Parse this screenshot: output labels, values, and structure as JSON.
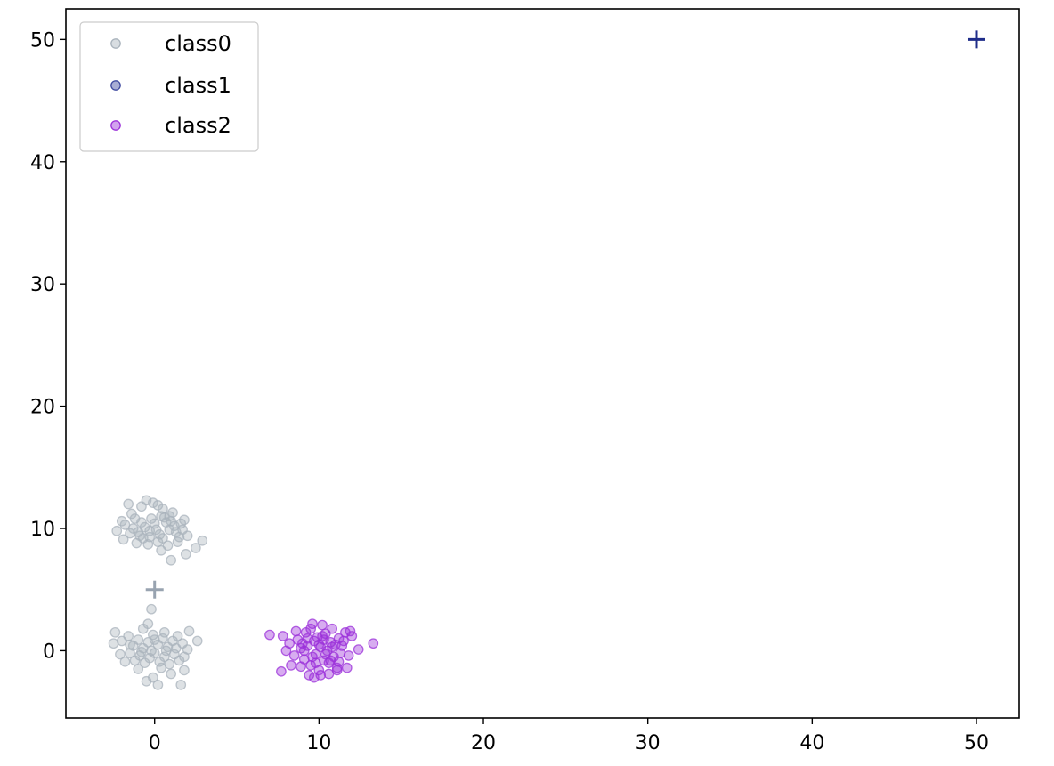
{
  "chart_data": {
    "type": "scatter",
    "xlim": [
      -5.4,
      52.6
    ],
    "ylim": [
      -5.5,
      52.5
    ],
    "x_ticks": [
      0,
      10,
      20,
      30,
      40,
      50
    ],
    "y_ticks": [
      0,
      10,
      20,
      30,
      40,
      50
    ],
    "x_tick_labels": [
      "0",
      "10",
      "20",
      "30",
      "40",
      "50"
    ],
    "y_tick_labels": [
      "0",
      "10",
      "20",
      "30",
      "40",
      "50"
    ],
    "grid": false,
    "legend_position": "upper-left",
    "series": [
      {
        "name": "class0",
        "color": "#a9b3bc",
        "marker": "circle",
        "points": [
          [
            -1.8,
            10.3
          ],
          [
            -1.5,
            9.6
          ],
          [
            -1.2,
            10.8
          ],
          [
            -0.9,
            9.4
          ],
          [
            -0.6,
            10.1
          ],
          [
            -0.3,
            9.8
          ],
          [
            0.0,
            10.4
          ],
          [
            0.3,
            9.5
          ],
          [
            0.6,
            10.9
          ],
          [
            0.9,
            9.9
          ],
          [
            1.2,
            10.2
          ],
          [
            1.5,
            9.3
          ],
          [
            -1.4,
            11.2
          ],
          [
            -0.8,
            11.8
          ],
          [
            -0.1,
            12.1
          ],
          [
            0.5,
            11.6
          ],
          [
            1.1,
            11.3
          ],
          [
            1.8,
            10.7
          ],
          [
            -2.3,
            9.8
          ],
          [
            -1.9,
            9.1
          ],
          [
            -1.1,
            8.8
          ],
          [
            -0.4,
            8.7
          ],
          [
            0.2,
            8.9
          ],
          [
            0.8,
            8.6
          ],
          [
            1.4,
            8.9
          ],
          [
            2.0,
            9.4
          ],
          [
            2.9,
            9.0
          ],
          [
            2.5,
            8.4
          ],
          [
            1.9,
            7.9
          ],
          [
            1.0,
            7.4
          ],
          [
            0.4,
            8.2
          ],
          [
            -0.7,
            9.2
          ],
          [
            -0.2,
            10.8
          ],
          [
            0.7,
            10.5
          ],
          [
            1.3,
            9.7
          ],
          [
            -1.6,
            12.0
          ],
          [
            -0.5,
            12.3
          ],
          [
            0.2,
            11.9
          ],
          [
            0.9,
            11.0
          ],
          [
            -2.0,
            10.6
          ],
          [
            -1.3,
            10.0
          ],
          [
            -0.8,
            10.5
          ],
          [
            0.1,
            9.9
          ],
          [
            0.5,
            9.2
          ],
          [
            1.0,
            10.6
          ],
          [
            1.6,
            10.4
          ],
          [
            -0.3,
            9.3
          ],
          [
            0.4,
            11.0
          ],
          [
            -1.0,
            9.7
          ],
          [
            1.7,
            9.9
          ],
          [
            -2.4,
            1.5
          ],
          [
            -2.0,
            0.8
          ],
          [
            -1.6,
            1.2
          ],
          [
            -1.3,
            0.4
          ],
          [
            -1.0,
            0.9
          ],
          [
            -0.7,
            0.2
          ],
          [
            -0.4,
            0.7
          ],
          [
            -0.1,
            1.3
          ],
          [
            0.2,
            0.5
          ],
          [
            0.5,
            1.0
          ],
          [
            0.8,
            0.3
          ],
          [
            1.1,
            0.8
          ],
          [
            1.4,
            1.2
          ],
          [
            1.7,
            0.6
          ],
          [
            2.0,
            0.1
          ],
          [
            2.6,
            0.8
          ],
          [
            2.1,
            1.6
          ],
          [
            -2.5,
            0.6
          ],
          [
            -2.1,
            -0.3
          ],
          [
            -1.8,
            -0.9
          ],
          [
            -1.5,
            -0.2
          ],
          [
            -1.2,
            -0.8
          ],
          [
            -0.9,
            -0.4
          ],
          [
            -0.6,
            -1.0
          ],
          [
            -0.3,
            -0.6
          ],
          [
            0.0,
            -0.2
          ],
          [
            0.3,
            -0.9
          ],
          [
            0.6,
            -0.5
          ],
          [
            0.9,
            -1.1
          ],
          [
            1.2,
            -0.3
          ],
          [
            1.5,
            -0.8
          ],
          [
            1.8,
            -0.5
          ],
          [
            -0.5,
            -2.5
          ],
          [
            -0.1,
            -2.2
          ],
          [
            0.2,
            -2.8
          ],
          [
            1.6,
            -2.8
          ],
          [
            -0.7,
            1.8
          ],
          [
            -0.4,
            2.2
          ],
          [
            -0.2,
            3.4
          ],
          [
            0.6,
            1.5
          ],
          [
            -1.0,
            -1.5
          ],
          [
            0.4,
            -1.4
          ],
          [
            1.0,
            -1.9
          ],
          [
            1.8,
            -1.6
          ],
          [
            -0.2,
            0.0
          ],
          [
            0.7,
            0.0
          ],
          [
            -1.5,
            0.5
          ],
          [
            1.3,
            0.2
          ],
          [
            0.0,
            0.9
          ],
          [
            -0.8,
            -0.1
          ]
        ]
      },
      {
        "name": "class1",
        "color": "#3f4aa0",
        "marker": "circle",
        "points": []
      },
      {
        "name": "class2",
        "color": "#9b30d9",
        "marker": "circle",
        "points": [
          [
            7.0,
            1.3
          ],
          [
            7.8,
            1.2
          ],
          [
            8.2,
            0.6
          ],
          [
            8.5,
            -0.4
          ],
          [
            8.7,
            0.9
          ],
          [
            8.9,
            0.2
          ],
          [
            9.1,
            -0.7
          ],
          [
            9.2,
            1.5
          ],
          [
            9.3,
            0.4
          ],
          [
            9.5,
            -1.2
          ],
          [
            9.6,
            2.2
          ],
          [
            9.7,
            0.8
          ],
          [
            9.8,
            -0.3
          ],
          [
            9.9,
            1.1
          ],
          [
            10.0,
            -1.6
          ],
          [
            10.1,
            0.3
          ],
          [
            10.2,
            2.1
          ],
          [
            10.3,
            -0.8
          ],
          [
            10.4,
            1.4
          ],
          [
            10.5,
            0.0
          ],
          [
            10.6,
            -1.0
          ],
          [
            10.7,
            0.7
          ],
          [
            10.8,
            1.8
          ],
          [
            10.9,
            -0.5
          ],
          [
            11.0,
            0.5
          ],
          [
            11.1,
            -1.4
          ],
          [
            11.2,
            1.0
          ],
          [
            11.3,
            -0.2
          ],
          [
            11.5,
            0.8
          ],
          [
            11.6,
            1.5
          ],
          [
            11.8,
            -0.4
          ],
          [
            12.0,
            1.2
          ],
          [
            12.4,
            0.1
          ],
          [
            13.3,
            0.6
          ],
          [
            7.7,
            -1.7
          ],
          [
            8.3,
            -1.2
          ],
          [
            8.9,
            -1.3
          ],
          [
            9.4,
            -2.0
          ],
          [
            9.7,
            -2.2
          ],
          [
            10.1,
            -2.0
          ],
          [
            10.6,
            -1.9
          ],
          [
            11.1,
            -1.6
          ],
          [
            11.7,
            -1.4
          ],
          [
            8.0,
            0.0
          ],
          [
            9.0,
            0.6
          ],
          [
            9.6,
            -0.5
          ],
          [
            10.2,
            1.2
          ],
          [
            10.8,
            0.3
          ],
          [
            11.4,
            0.4
          ],
          [
            9.3,
            1.0
          ],
          [
            10.0,
            0.5
          ],
          [
            9.8,
            -1.0
          ],
          [
            10.4,
            -0.3
          ],
          [
            9.1,
            0.0
          ],
          [
            10.7,
            -0.8
          ],
          [
            11.9,
            1.6
          ],
          [
            9.5,
            1.8
          ],
          [
            10.3,
            0.9
          ],
          [
            8.6,
            1.6
          ],
          [
            11.2,
            -0.9
          ]
        ]
      }
    ],
    "centers": [
      {
        "series": "class0",
        "x": 0,
        "y": 5,
        "marker": "plus",
        "color": "#98a3b0"
      },
      {
        "series": "class1",
        "x": 50,
        "y": 50,
        "marker": "plus",
        "color": "#1f2d8a"
      }
    ]
  }
}
